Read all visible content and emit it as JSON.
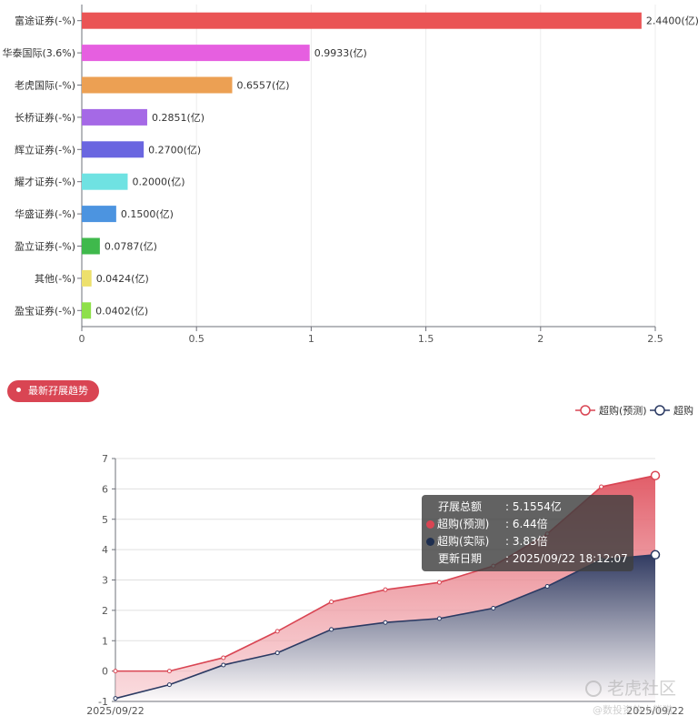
{
  "chart_data": [
    {
      "type": "bar",
      "orientation": "horizontal",
      "categories": [
        "富途证券(-%)",
        "华泰国际(3.6%)",
        "老虎国际(-%)",
        "长桥证券(-%)",
        "辉立证券(-%)",
        "耀才证券(-%)",
        "华盛证券(-%)",
        "盈立证券(-%)",
        "其他(-%)",
        "盈宝证券(-%)"
      ],
      "values": [
        2.44,
        0.9933,
        0.6557,
        0.2851,
        0.27,
        0.2,
        0.15,
        0.0787,
        0.0424,
        0.0402
      ],
      "value_labels": [
        "2.4400(亿)",
        "0.9933(亿)",
        "0.6557(亿)",
        "0.2851(亿)",
        "0.2700(亿)",
        "0.2000(亿)",
        "0.1500(亿)",
        "0.0787(亿)",
        "0.0424(亿)",
        "0.0402(亿)"
      ],
      "colors": [
        "#ea5455",
        "#e65fe0",
        "#eca053",
        "#a569e6",
        "#6a66e0",
        "#6fe2e2",
        "#4c94e0",
        "#3fb94c",
        "#ede06c",
        "#8ee04a"
      ],
      "xlim": [
        0,
        2.5
      ],
      "x_ticks": [
        "0",
        "0.5",
        "1",
        "1.5",
        "2",
        "2.5"
      ],
      "grid": true
    },
    {
      "type": "area",
      "x_labels": [
        "2025/09/22",
        "2025/09/22"
      ],
      "ylim": [
        -1,
        7
      ],
      "y_ticks": [
        "-1",
        "0",
        "1",
        "2",
        "3",
        "4",
        "5",
        "6",
        "7"
      ],
      "legend_position": "top-right",
      "grid": true,
      "series": [
        {
          "name": "超购(预测)",
          "color": "#d94553",
          "values": [
            0,
            0,
            0.44,
            1.31,
            2.28,
            2.68,
            2.92,
            3.46,
            4.52,
            6.07,
            6.44
          ]
        },
        {
          "name": "超购",
          "color": "#2b3a63",
          "values": [
            -0.9,
            -0.45,
            0.2,
            0.6,
            1.37,
            1.6,
            1.73,
            2.07,
            2.79,
            3.67,
            3.83
          ]
        }
      ]
    }
  ],
  "trend_badge": "最新孖展趋势",
  "tooltip": {
    "rows": [
      {
        "key": "孖展总额",
        "value": "5.1554亿"
      },
      {
        "key": "超购(预测)",
        "value": "6.44倍",
        "color": "#d94553"
      },
      {
        "key": "超购(实际)",
        "value": "3.83倍",
        "color": "#1e2e4f"
      },
      {
        "key": "更新日期",
        "value": "2025/09/22 18:12:07"
      }
    ],
    "separator": ":"
  },
  "watermark": {
    "main": "老虎社区",
    "sub": "@数投资的小熊猫"
  }
}
